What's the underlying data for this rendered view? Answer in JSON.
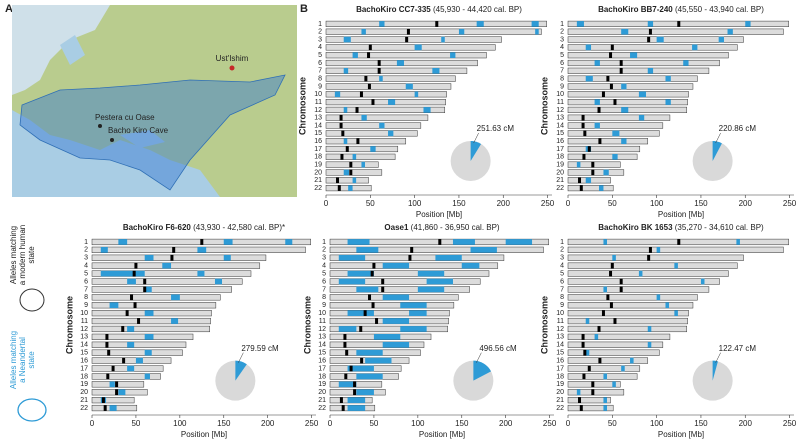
{
  "panel_labels": [
    "A",
    "B"
  ],
  "map": {
    "sites": [
      "Ust'Ishim",
      "Pestera cu Oase",
      "Bacho Kiro Cave"
    ]
  },
  "legend": {
    "modern": [
      "Alleles matching",
      "a modern human",
      "state"
    ],
    "neandertal": [
      "Alleles matching",
      "a Neandertal",
      "state"
    ]
  },
  "chart_data": [
    {
      "type": "chromosome",
      "title_name": "BachoKiro CC7-335",
      "title_dates": "(45,930 - 44,420 cal. BP)",
      "categories": [
        "1",
        "2",
        "3",
        "4",
        "5",
        "6",
        "7",
        "8",
        "9",
        "10",
        "11",
        "12",
        "13",
        "14",
        "15",
        "16",
        "17",
        "18",
        "19",
        "20",
        "21",
        "22"
      ],
      "lengths": [
        249,
        243,
        198,
        191,
        181,
        171,
        159,
        146,
        141,
        136,
        135,
        134,
        115,
        107,
        103,
        90,
        81,
        78,
        59,
        63,
        48,
        51
      ],
      "centromeres": [
        125,
        93,
        91,
        50,
        48,
        60,
        60,
        45,
        49,
        40,
        53,
        35,
        17,
        17,
        19,
        36,
        24,
        18,
        28,
        28,
        13,
        15
      ],
      "segments": [
        [
          0,
          60,
          66
        ],
        [
          0,
          170,
          178
        ],
        [
          0,
          232,
          240
        ],
        [
          1,
          40,
          45
        ],
        [
          1,
          150,
          156
        ],
        [
          1,
          236,
          240
        ],
        [
          2,
          20,
          28
        ],
        [
          2,
          130,
          134
        ],
        [
          3,
          100,
          108
        ],
        [
          4,
          30,
          36
        ],
        [
          4,
          140,
          146
        ],
        [
          5,
          80,
          88
        ],
        [
          6,
          20,
          25
        ],
        [
          6,
          120,
          128
        ],
        [
          7,
          60,
          64
        ],
        [
          8,
          90,
          98
        ],
        [
          9,
          10,
          16
        ],
        [
          9,
          100,
          104
        ],
        [
          10,
          70,
          78
        ],
        [
          11,
          20,
          24
        ],
        [
          11,
          110,
          118
        ],
        [
          12,
          40,
          46
        ],
        [
          13,
          60,
          66
        ],
        [
          14,
          70,
          76
        ],
        [
          15,
          20,
          24
        ],
        [
          16,
          50,
          56
        ],
        [
          17,
          30,
          34
        ],
        [
          18,
          40,
          44
        ],
        [
          19,
          20,
          26
        ],
        [
          20,
          30,
          34
        ],
        [
          21,
          25,
          30
        ]
      ],
      "xlim": [
        0,
        255
      ],
      "xticks": [
        0,
        50,
        100,
        150,
        200,
        250
      ],
      "xlabel": "Position [Mb]",
      "ylabel": "Chromosome",
      "pie_value": 251.63,
      "pie_label": "251.63 cM",
      "color": "#2e9bd6"
    },
    {
      "type": "chromosome",
      "title_name": "BachoKiro BB7-240",
      "title_dates": "(45,550 - 43,940 cal. BP)",
      "categories": [
        "1",
        "2",
        "3",
        "4",
        "5",
        "6",
        "7",
        "8",
        "9",
        "10",
        "11",
        "12",
        "13",
        "14",
        "15",
        "16",
        "17",
        "18",
        "19",
        "20",
        "21",
        "22"
      ],
      "lengths": [
        249,
        243,
        198,
        191,
        181,
        171,
        159,
        146,
        141,
        136,
        135,
        134,
        115,
        107,
        103,
        90,
        81,
        78,
        59,
        63,
        48,
        51
      ],
      "centromeres": [
        125,
        93,
        91,
        50,
        48,
        60,
        60,
        45,
        49,
        40,
        53,
        35,
        17,
        17,
        19,
        36,
        24,
        18,
        28,
        28,
        13,
        15
      ],
      "segments": [
        [
          0,
          10,
          18
        ],
        [
          0,
          90,
          96
        ],
        [
          0,
          200,
          206
        ],
        [
          1,
          60,
          68
        ],
        [
          1,
          180,
          186
        ],
        [
          2,
          100,
          108
        ],
        [
          2,
          170,
          176
        ],
        [
          3,
          20,
          26
        ],
        [
          3,
          140,
          146
        ],
        [
          4,
          70,
          78
        ],
        [
          5,
          30,
          36
        ],
        [
          5,
          130,
          136
        ],
        [
          6,
          90,
          96
        ],
        [
          7,
          20,
          28
        ],
        [
          7,
          110,
          116
        ],
        [
          8,
          60,
          66
        ],
        [
          9,
          80,
          88
        ],
        [
          10,
          30,
          36
        ],
        [
          10,
          110,
          116
        ],
        [
          11,
          60,
          68
        ],
        [
          12,
          80,
          86
        ],
        [
          13,
          30,
          36
        ],
        [
          14,
          50,
          58
        ],
        [
          15,
          60,
          66
        ],
        [
          16,
          20,
          26
        ],
        [
          17,
          50,
          56
        ],
        [
          18,
          10,
          14
        ],
        [
          19,
          40,
          46
        ],
        [
          20,
          20,
          26
        ],
        [
          21,
          35,
          40
        ]
      ],
      "xlim": [
        0,
        255
      ],
      "xticks": [
        0,
        50,
        100,
        150,
        200,
        250
      ],
      "xlabel": "Position [Mb]",
      "ylabel": "Chromosome",
      "pie_value": 220.86,
      "pie_label": "220.86 cM",
      "color": "#2e9bd6"
    },
    {
      "type": "chromosome",
      "title_name": "BachoKiro F6-620",
      "title_dates": "(43,930 - 42,580 cal. BP)*",
      "categories": [
        "1",
        "2",
        "3",
        "4",
        "5",
        "6",
        "7",
        "8",
        "9",
        "10",
        "11",
        "12",
        "13",
        "14",
        "15",
        "16",
        "17",
        "18",
        "19",
        "20",
        "21",
        "22"
      ],
      "lengths": [
        249,
        243,
        198,
        191,
        181,
        171,
        159,
        146,
        141,
        136,
        135,
        134,
        115,
        107,
        103,
        90,
        81,
        78,
        59,
        63,
        48,
        51
      ],
      "centromeres": [
        125,
        93,
        91,
        50,
        48,
        60,
        60,
        45,
        49,
        40,
        53,
        35,
        17,
        17,
        19,
        36,
        24,
        18,
        28,
        28,
        13,
        15
      ],
      "segments": [
        [
          0,
          30,
          40
        ],
        [
          0,
          150,
          160
        ],
        [
          0,
          220,
          228
        ],
        [
          1,
          10,
          18
        ],
        [
          1,
          120,
          130
        ],
        [
          2,
          60,
          70
        ],
        [
          2,
          150,
          158
        ],
        [
          3,
          80,
          90
        ],
        [
          4,
          10,
          60
        ],
        [
          4,
          120,
          128
        ],
        [
          5,
          40,
          50
        ],
        [
          5,
          140,
          148
        ],
        [
          6,
          60,
          68
        ],
        [
          7,
          90,
          100
        ],
        [
          8,
          20,
          30
        ],
        [
          9,
          60,
          70
        ],
        [
          10,
          90,
          98
        ],
        [
          11,
          40,
          48
        ],
        [
          12,
          60,
          70
        ],
        [
          13,
          40,
          48
        ],
        [
          14,
          60,
          68
        ],
        [
          15,
          50,
          58
        ],
        [
          16,
          40,
          48
        ],
        [
          17,
          60,
          66
        ],
        [
          18,
          20,
          26
        ],
        [
          19,
          30,
          38
        ],
        [
          20,
          10,
          16
        ],
        [
          21,
          20,
          28
        ]
      ],
      "xlim": [
        0,
        255
      ],
      "xticks": [
        0,
        50,
        100,
        150,
        200,
        250
      ],
      "xlabel": "Position [Mb]",
      "ylabel": "Chromosome",
      "pie_value": 279.59,
      "pie_label": "279.59 cM",
      "color": "#2e9bd6"
    },
    {
      "type": "chromosome",
      "title_name": "Oase1",
      "title_dates": "(41,860 - 36,950 cal. BP)",
      "categories": [
        "1",
        "2",
        "3",
        "4",
        "5",
        "6",
        "7",
        "8",
        "9",
        "10",
        "11",
        "12",
        "13",
        "14",
        "15",
        "16",
        "17",
        "18",
        "19",
        "20",
        "21",
        "22"
      ],
      "lengths": [
        249,
        243,
        198,
        191,
        181,
        171,
        159,
        146,
        141,
        136,
        135,
        134,
        115,
        107,
        103,
        90,
        81,
        78,
        59,
        63,
        48,
        51
      ],
      "centromeres": [
        125,
        93,
        91,
        50,
        48,
        60,
        60,
        45,
        49,
        40,
        53,
        35,
        17,
        17,
        19,
        36,
        24,
        18,
        28,
        28,
        13,
        15
      ],
      "segments": [
        [
          0,
          20,
          45
        ],
        [
          0,
          140,
          165
        ],
        [
          0,
          200,
          230
        ],
        [
          1,
          30,
          55
        ],
        [
          1,
          160,
          190
        ],
        [
          2,
          10,
          40
        ],
        [
          2,
          120,
          150
        ],
        [
          3,
          60,
          90
        ],
        [
          3,
          150,
          170
        ],
        [
          4,
          20,
          50
        ],
        [
          4,
          100,
          130
        ],
        [
          5,
          10,
          40
        ],
        [
          5,
          110,
          140
        ],
        [
          6,
          30,
          55
        ],
        [
          6,
          100,
          130
        ],
        [
          7,
          60,
          90
        ],
        [
          8,
          80,
          110
        ],
        [
          9,
          20,
          50
        ],
        [
          9,
          90,
          110
        ],
        [
          10,
          60,
          90
        ],
        [
          11,
          10,
          30
        ],
        [
          11,
          80,
          110
        ],
        [
          12,
          50,
          80
        ],
        [
          13,
          60,
          90
        ],
        [
          14,
          30,
          60
        ],
        [
          15,
          40,
          70
        ],
        [
          16,
          20,
          50
        ],
        [
          17,
          30,
          60
        ],
        [
          18,
          10,
          30
        ],
        [
          19,
          30,
          50
        ],
        [
          20,
          20,
          40
        ],
        [
          21,
          20,
          40
        ]
      ],
      "xlim": [
        0,
        255
      ],
      "xticks": [
        0,
        50,
        100,
        150,
        200,
        250
      ],
      "xlabel": "Position [Mb]",
      "ylabel": "Chromosome",
      "pie_value": 496.56,
      "pie_label": "496.56 cM",
      "color": "#2e9bd6"
    },
    {
      "type": "chromosome",
      "title_name": "BachoKiro BK 1653",
      "title_dates": "(35,270 - 34,610 cal. BP)",
      "categories": [
        "1",
        "2",
        "3",
        "4",
        "5",
        "6",
        "7",
        "8",
        "9",
        "10",
        "11",
        "12",
        "13",
        "14",
        "15",
        "16",
        "17",
        "18",
        "19",
        "20",
        "21",
        "22"
      ],
      "lengths": [
        249,
        243,
        198,
        191,
        181,
        171,
        159,
        146,
        141,
        136,
        135,
        134,
        115,
        107,
        103,
        90,
        81,
        78,
        59,
        63,
        48,
        51
      ],
      "centromeres": [
        125,
        93,
        91,
        50,
        48,
        60,
        60,
        45,
        49,
        40,
        53,
        35,
        17,
        17,
        19,
        36,
        24,
        18,
        28,
        28,
        13,
        15
      ],
      "segments": [
        [
          0,
          40,
          44
        ],
        [
          0,
          190,
          194
        ],
        [
          1,
          100,
          104
        ],
        [
          2,
          50,
          54
        ],
        [
          3,
          120,
          124
        ],
        [
          4,
          80,
          84
        ],
        [
          5,
          150,
          154
        ],
        [
          6,
          40,
          44
        ],
        [
          7,
          100,
          104
        ],
        [
          8,
          110,
          114
        ],
        [
          9,
          120,
          124
        ],
        [
          10,
          20,
          24
        ],
        [
          11,
          90,
          94
        ],
        [
          12,
          30,
          34
        ],
        [
          13,
          90,
          94
        ],
        [
          14,
          20,
          24
        ],
        [
          15,
          70,
          74
        ],
        [
          16,
          60,
          64
        ],
        [
          17,
          40,
          44
        ],
        [
          18,
          50,
          54
        ],
        [
          19,
          10,
          14
        ],
        [
          20,
          40,
          44
        ],
        [
          21,
          40,
          44
        ]
      ],
      "xlim": [
        0,
        255
      ],
      "xticks": [
        0,
        50,
        100,
        150,
        200,
        250
      ],
      "xlabel": "Position [Mb]",
      "ylabel": "Chromosome",
      "pie_value": 122.47,
      "pie_label": "122.47 cM",
      "color": "#2e9bd6"
    }
  ]
}
